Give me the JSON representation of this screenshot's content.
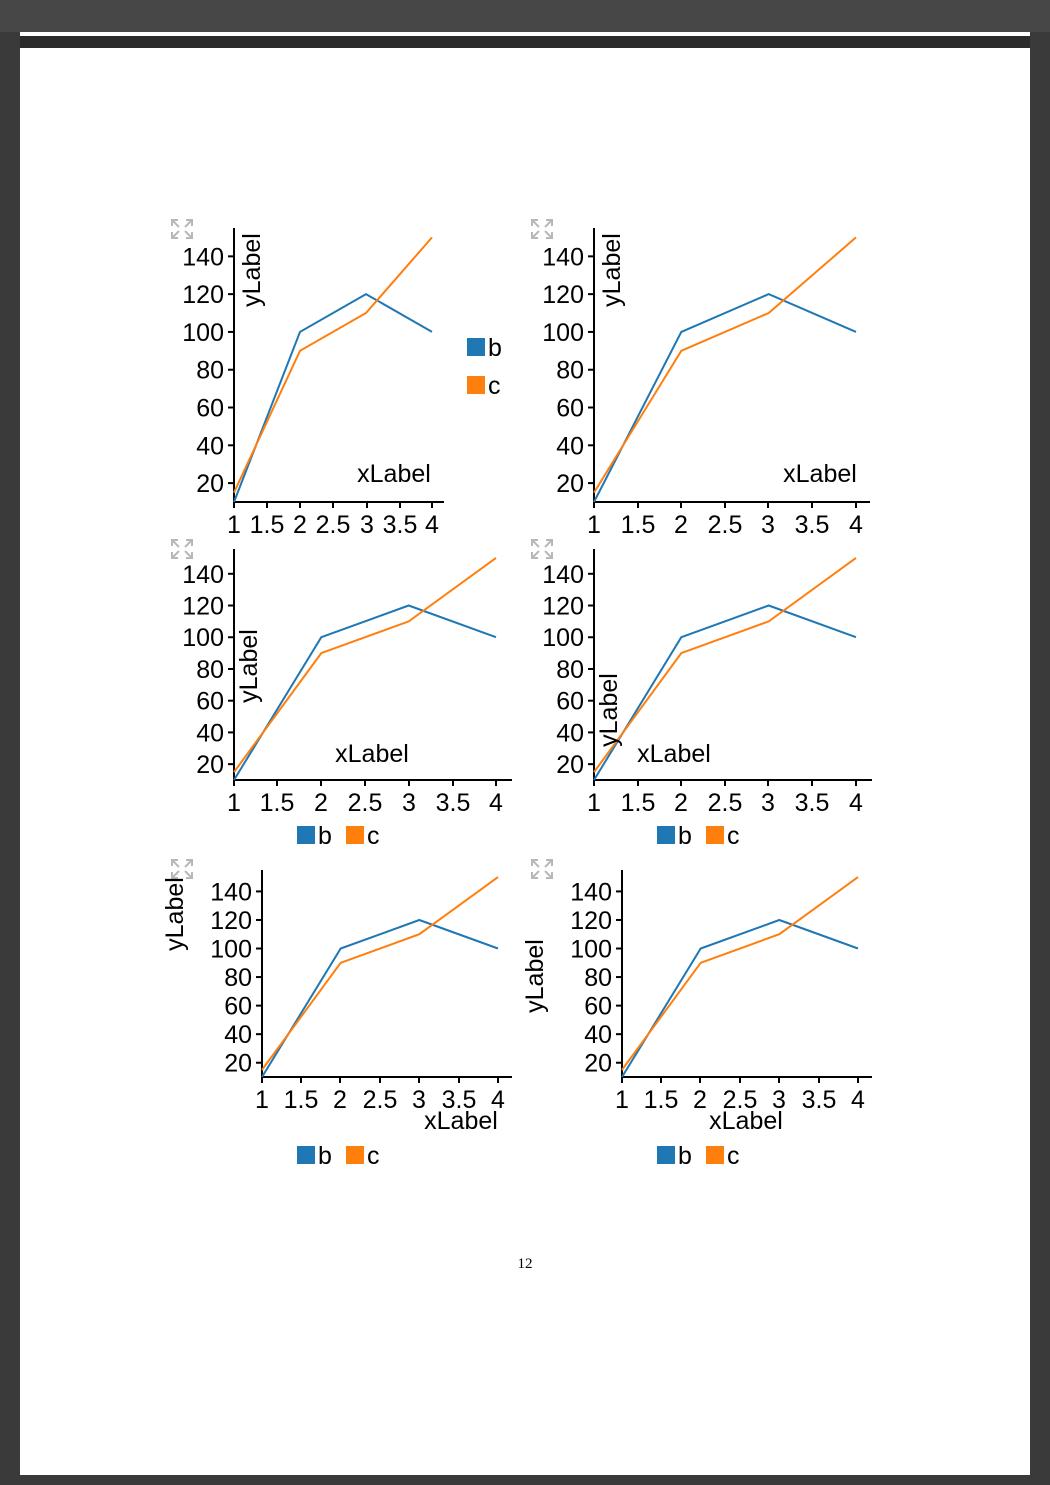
{
  "page": {
    "page_number": "12"
  },
  "expand_icon": "expand-arrows-icon",
  "colors": {
    "b": "#1f77b4",
    "c": "#ff7f0e",
    "axis": "#000000",
    "icon": "#b8b8b8"
  },
  "chart_data": [
    {
      "type": "line",
      "x": [
        1,
        2,
        3,
        4
      ],
      "series": [
        {
          "name": "b",
          "values": [
            10,
            100,
            120,
            100
          ]
        },
        {
          "name": "c",
          "values": [
            15,
            90,
            110,
            150
          ]
        }
      ],
      "xlabel": "xLabel",
      "ylabel": "yLabel",
      "xticks": [
        "1",
        "1.5",
        "2",
        "2.5",
        "3",
        "3.5",
        "4"
      ],
      "yticks": [
        "20",
        "40",
        "60",
        "80",
        "100",
        "120",
        "140"
      ],
      "xlim": [
        1,
        4
      ],
      "ylim": [
        10,
        155
      ],
      "grid": false,
      "legend": "right"
    },
    {
      "type": "line",
      "x": [
        1,
        2,
        3,
        4
      ],
      "series": [
        {
          "name": "b",
          "values": [
            10,
            100,
            120,
            100
          ]
        },
        {
          "name": "c",
          "values": [
            15,
            90,
            110,
            150
          ]
        }
      ],
      "xlabel": "xLabel",
      "ylabel": "yLabel",
      "xticks": [
        "1",
        "1.5",
        "2",
        "2.5",
        "3",
        "3.5",
        "4"
      ],
      "yticks": [
        "20",
        "40",
        "60",
        "80",
        "100",
        "120",
        "140"
      ],
      "xlim": [
        1,
        4
      ],
      "ylim": [
        10,
        155
      ],
      "grid": false,
      "legend": "none"
    },
    {
      "type": "line",
      "x": [
        1,
        2,
        3,
        4
      ],
      "series": [
        {
          "name": "b",
          "values": [
            10,
            100,
            120,
            100
          ]
        },
        {
          "name": "c",
          "values": [
            15,
            90,
            110,
            150
          ]
        }
      ],
      "xlabel": "xLabel",
      "ylabel": "yLabel",
      "xticks": [
        "1",
        "1.5",
        "2",
        "2.5",
        "3",
        "3.5",
        "4"
      ],
      "yticks": [
        "20",
        "40",
        "60",
        "80",
        "100",
        "120",
        "140"
      ],
      "xlim": [
        1,
        4
      ],
      "ylim": [
        10,
        155
      ],
      "grid": false,
      "legend": "bottom"
    },
    {
      "type": "line",
      "x": [
        1,
        2,
        3,
        4
      ],
      "series": [
        {
          "name": "b",
          "values": [
            10,
            100,
            120,
            100
          ]
        },
        {
          "name": "c",
          "values": [
            15,
            90,
            110,
            150
          ]
        }
      ],
      "xlabel": "xLabel",
      "ylabel": "yLabel",
      "xticks": [
        "1",
        "1.5",
        "2",
        "2.5",
        "3",
        "3.5",
        "4"
      ],
      "yticks": [
        "20",
        "40",
        "60",
        "80",
        "100",
        "120",
        "140"
      ],
      "xlim": [
        1,
        4
      ],
      "ylim": [
        10,
        155
      ],
      "grid": false,
      "legend": "bottom"
    },
    {
      "type": "line",
      "x": [
        1,
        2,
        3,
        4
      ],
      "series": [
        {
          "name": "b",
          "values": [
            10,
            100,
            120,
            100
          ]
        },
        {
          "name": "c",
          "values": [
            15,
            90,
            110,
            150
          ]
        }
      ],
      "xlabel": "xLabel",
      "ylabel": "yLabel",
      "xticks": [
        "1",
        "1.5",
        "2",
        "2.5",
        "3",
        "3.5",
        "4"
      ],
      "yticks": [
        "20",
        "40",
        "60",
        "80",
        "100",
        "120",
        "140"
      ],
      "xlim": [
        1,
        4
      ],
      "ylim": [
        10,
        155
      ],
      "grid": false,
      "legend": "bottom"
    },
    {
      "type": "line",
      "x": [
        1,
        2,
        3,
        4
      ],
      "series": [
        {
          "name": "b",
          "values": [
            10,
            100,
            120,
            100
          ]
        },
        {
          "name": "c",
          "values": [
            15,
            90,
            110,
            150
          ]
        }
      ],
      "xlabel": "xLabel",
      "ylabel": "yLabel",
      "xticks": [
        "1",
        "1.5",
        "2",
        "2.5",
        "3",
        "3.5",
        "4"
      ],
      "yticks": [
        "20",
        "40",
        "60",
        "80",
        "100",
        "120",
        "140"
      ],
      "xlim": [
        1,
        4
      ],
      "ylim": [
        10,
        155
      ],
      "grid": false,
      "legend": "bottom"
    }
  ]
}
